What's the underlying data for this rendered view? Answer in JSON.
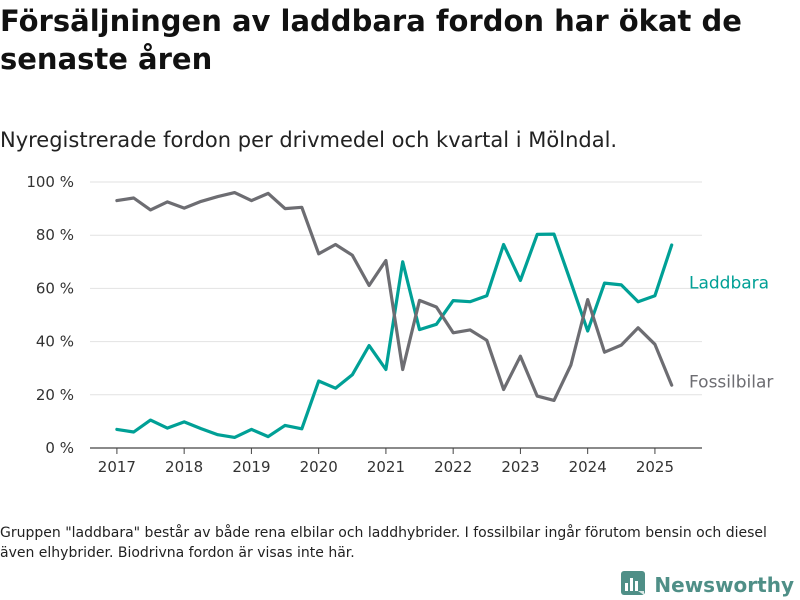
{
  "title": "Försäljningen av laddbara fordon har ökat de senaste åren",
  "subtitle": "Nyregistrerade fordon per drivmedel och kvartal i Mölndal.",
  "footnote": "Gruppen \"laddbara\" består av både rena elbilar och laddhybrider. I fossilbilar ingår förutom bensin och diesel även elhybrider. Biodrivna fordon är visas inte här.",
  "brand": {
    "name": "Newsworthy",
    "icon": "bar-chart-logo-icon",
    "color": "#4f8f87"
  },
  "chart_data": {
    "type": "line",
    "x": [
      2017.0,
      2017.25,
      2017.5,
      2017.75,
      2018.0,
      2018.25,
      2018.5,
      2018.75,
      2019.0,
      2019.25,
      2019.5,
      2019.75,
      2020.0,
      2020.25,
      2020.5,
      2020.75,
      2021.0,
      2021.25,
      2021.5,
      2021.75,
      2022.0,
      2022.25,
      2022.5,
      2022.75,
      2023.0,
      2023.25,
      2023.5,
      2023.75,
      2024.0,
      2024.25,
      2024.5,
      2024.75,
      2025.0,
      2025.25
    ],
    "series": [
      {
        "name": "Laddbara",
        "color": "#00a096",
        "values": [
          7,
          6,
          10.5,
          7.5,
          9.8,
          7.3,
          5,
          4,
          7,
          4.3,
          8.5,
          7.2,
          25.2,
          22.5,
          27.5,
          38.5,
          29.5,
          70,
          44.5,
          46.5,
          55.4,
          55,
          57.2,
          76.5,
          63,
          80.3,
          80.4,
          62.3,
          44,
          62,
          61.3,
          55,
          57.2,
          76.3
        ]
      },
      {
        "name": "Fossilbilar",
        "color": "#6d6d72",
        "values": [
          93,
          94,
          89.5,
          92.5,
          90.2,
          92.7,
          94.5,
          96,
          93,
          95.7,
          90,
          90.5,
          73,
          76.5,
          72.5,
          61.1,
          70.5,
          29.5,
          55.5,
          53,
          43.3,
          44.4,
          40.5,
          22,
          34.5,
          19.5,
          17.9,
          31.2,
          55.8,
          36,
          38.7,
          45.2,
          39,
          23.6
        ]
      }
    ],
    "xticks": [
      2017,
      2018,
      2019,
      2020,
      2021,
      2022,
      2023,
      2024,
      2025
    ],
    "yticks": [
      0,
      20,
      40,
      60,
      80,
      100
    ],
    "ytick_labels": [
      "0 %",
      "20 %",
      "40 %",
      "60 %",
      "80 %",
      "100 %"
    ],
    "xlim": [
      2016.6,
      2025.7
    ],
    "ylim": [
      0,
      100
    ],
    "grid": true,
    "legend": "inline labels at line ends (right)"
  }
}
